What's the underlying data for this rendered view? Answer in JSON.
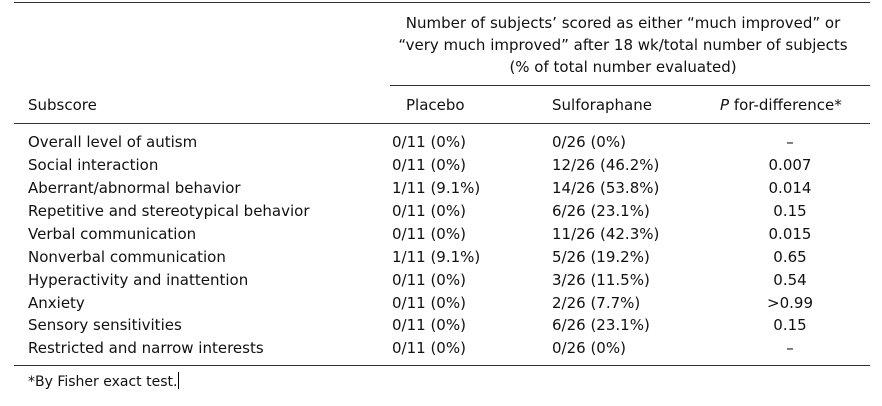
{
  "table": {
    "group_header": "Number of subjects’ scored as either “much improved” or “very much improved” after 18 wk/total number of subjects (% of total number evaluated)",
    "columns": {
      "subscore": "Subscore",
      "placebo": "Placebo",
      "sulforaphane": "Sulforaphane",
      "p_prefix": "P",
      "p_suffix": " for-difference*"
    },
    "rows": [
      {
        "subscore": "Overall level of autism",
        "placebo": "0/11 (0%)",
        "sulforaphane": "0/26 (0%)",
        "p": "–"
      },
      {
        "subscore": "Social interaction",
        "placebo": "0/11 (0%)",
        "sulforaphane": "12/26 (46.2%)",
        "p": "0.007"
      },
      {
        "subscore": "Aberrant/abnormal behavior",
        "placebo": "1/11 (9.1%)",
        "sulforaphane": "14/26 (53.8%)",
        "p": "0.014"
      },
      {
        "subscore": "Repetitive and stereotypical behavior",
        "placebo": "0/11 (0%)",
        "sulforaphane": "6/26 (23.1%)",
        "p": "0.15"
      },
      {
        "subscore": "Verbal communication",
        "placebo": "0/11 (0%)",
        "sulforaphane": "11/26 (42.3%)",
        "p": "0.015"
      },
      {
        "subscore": "Nonverbal communication",
        "placebo": "1/11 (9.1%)",
        "sulforaphane": "5/26 (19.2%)",
        "p": "0.65"
      },
      {
        "subscore": "Hyperactivity and inattention",
        "placebo": "0/11 (0%)",
        "sulforaphane": "3/26 (11.5%)",
        "p": "0.54"
      },
      {
        "subscore": "Anxiety",
        "placebo": "0/11 (0%)",
        "sulforaphane": "2/26 (7.7%)",
        "p": ">0.99"
      },
      {
        "subscore": "Sensory sensitivities",
        "placebo": "0/11 (0%)",
        "sulforaphane": "6/26 (23.1%)",
        "p": "0.15"
      },
      {
        "subscore": "Restricted and narrow interests",
        "placebo": "0/11 (0%)",
        "sulforaphane": "0/26 (0%)",
        "p": "–"
      }
    ],
    "footnote": "*By Fisher exact test."
  }
}
